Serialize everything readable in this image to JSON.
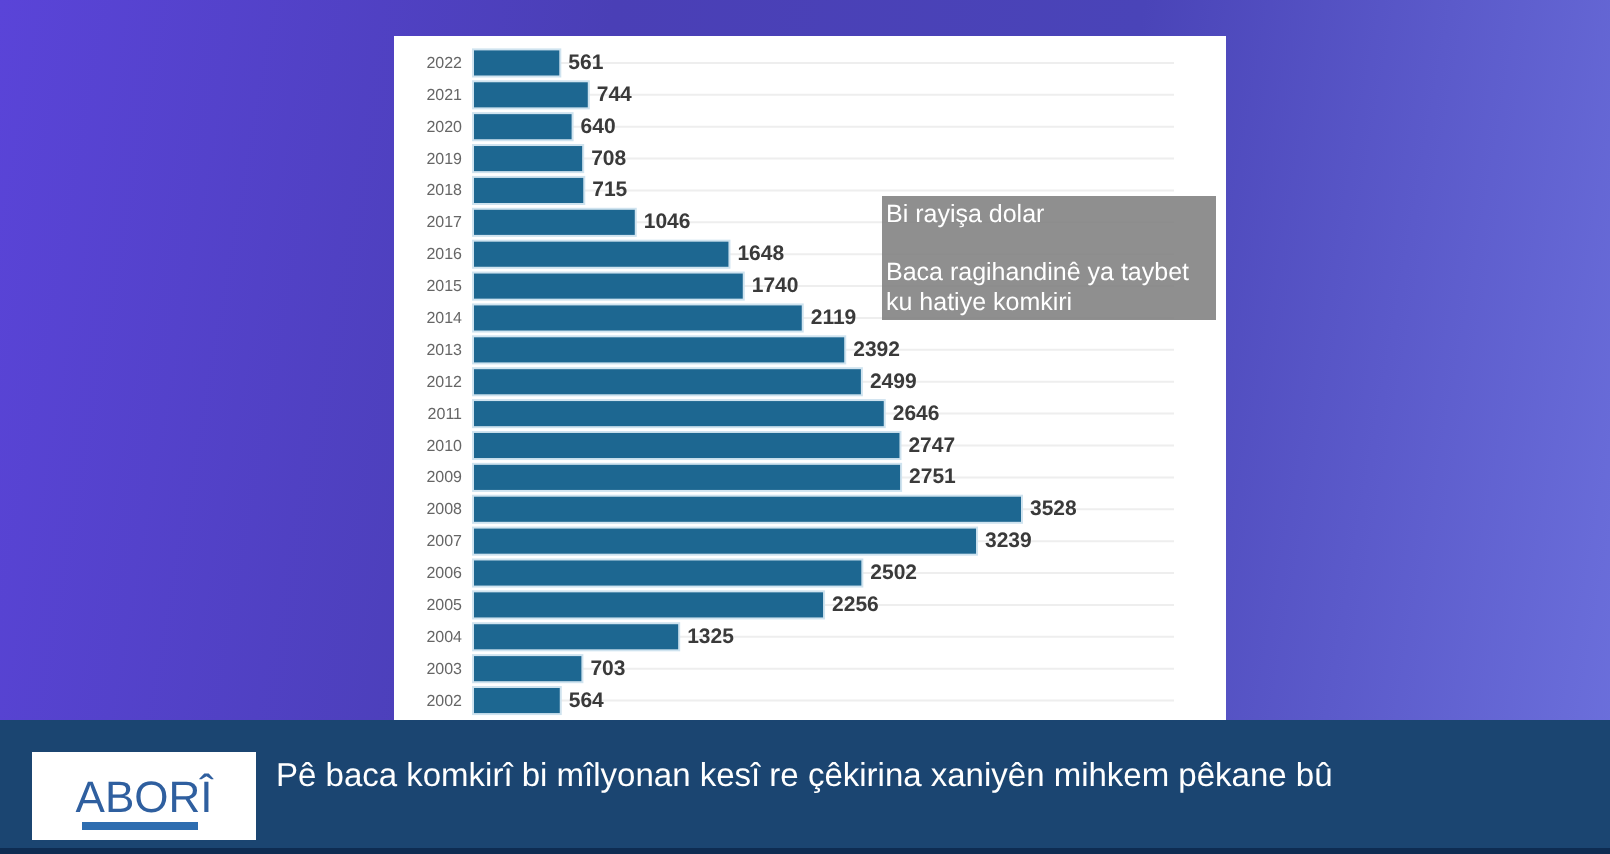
{
  "chart_data": {
    "type": "bar",
    "orientation": "horizontal",
    "title": "Pê baca komkirî bi mîlyonan kesî re çêkirina xaniyên mihkem pêkane bû",
    "annotations": [
      "Bi rayişa dolar",
      "Baca ragihandinê ya taybet ku hatiye komkiri",
      "ABORÎ"
    ],
    "categories": [
      "2022",
      "2021",
      "2020",
      "2019",
      "2018",
      "2017",
      "2016",
      "2015",
      "2014",
      "2013",
      "2012",
      "2011",
      "2010",
      "2009",
      "2008",
      "2007",
      "2006",
      "2005",
      "2004",
      "2003",
      "2002"
    ],
    "values": [
      561,
      744,
      640,
      708,
      715,
      1046,
      1648,
      1740,
      2119,
      2392,
      2499,
      2646,
      2747,
      2751,
      3528,
      3239,
      2502,
      2256,
      1325,
      703,
      564
    ],
    "color": "#1d6791",
    "data_labels": true,
    "grid": "y"
  }
}
